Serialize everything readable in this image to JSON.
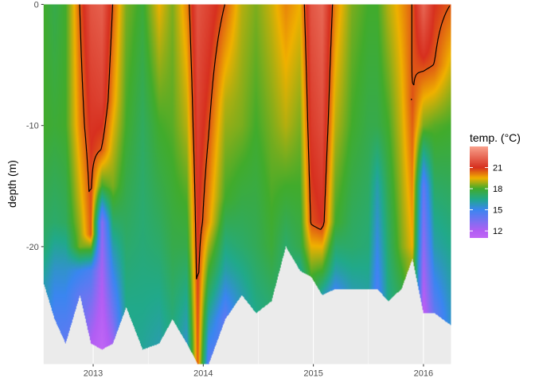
{
  "chart_data": {
    "type": "heatmap",
    "title": "",
    "xlabel": "",
    "ylabel": "depth (m)",
    "x_range": [
      2012.55,
      2016.25
    ],
    "y_range": [
      -29.7,
      0
    ],
    "x_ticks": [
      {
        "value": 2013,
        "label": "2013"
      },
      {
        "value": 2014,
        "label": "2014"
      },
      {
        "value": 2015,
        "label": "2015"
      },
      {
        "value": 2016,
        "label": "2016"
      }
    ],
    "y_ticks": [
      {
        "value": 0,
        "label": "0"
      },
      {
        "value": -10,
        "label": "-10"
      },
      {
        "value": -20,
        "label": "-20"
      }
    ],
    "grid": true,
    "legend": {
      "title": "temp. (°C)",
      "position": "right",
      "scale": [
        {
          "value": 24,
          "color": "#f9a18c"
        },
        {
          "value": 21,
          "color": "#d7301f"
        },
        {
          "value": 19.5,
          "color": "#f0b000"
        },
        {
          "value": 18,
          "color": "#41ab2c"
        },
        {
          "value": 16.5,
          "color": "#21a98a"
        },
        {
          "value": 15,
          "color": "#3a86f0"
        },
        {
          "value": 12,
          "color": "#b25ef3"
        },
        {
          "value": 11,
          "color": "#c066f5"
        }
      ],
      "breaks": [
        {
          "value": 21,
          "label": "21"
        },
        {
          "value": 18,
          "label": "18"
        },
        {
          "value": 15,
          "label": "15"
        },
        {
          "value": 12,
          "label": "12"
        }
      ]
    },
    "series": [
      {
        "name": "",
        "x": 2012.55,
        "bottom": -23,
        "profile": [
          [
            0,
            18
          ],
          [
            -10,
            18
          ],
          [
            -20,
            17
          ],
          [
            -23,
            16
          ]
        ]
      },
      {
        "name": "",
        "x": 2012.65,
        "bottom": -26,
        "profile": [
          [
            0,
            17.5
          ],
          [
            -10,
            17.8
          ],
          [
            -18,
            17
          ],
          [
            -22,
            15.5
          ],
          [
            -26,
            14.5
          ]
        ]
      },
      {
        "name": "",
        "x": 2012.75,
        "bottom": -28,
        "profile": [
          [
            0,
            18
          ],
          [
            -10,
            18
          ],
          [
            -18,
            17.2
          ],
          [
            -22,
            15.5
          ],
          [
            -28,
            14
          ]
        ]
      },
      {
        "name": "",
        "x": 2012.88,
        "bottom": -24,
        "profile": [
          [
            0,
            20.5
          ],
          [
            -10,
            20
          ],
          [
            -16,
            19.2
          ],
          [
            -20,
            18.5
          ],
          [
            -22,
            15
          ],
          [
            -24,
            14
          ]
        ]
      },
      {
        "name": "",
        "x": 2012.98,
        "bottom": -28,
        "profile": [
          [
            0,
            22
          ],
          [
            -8,
            21.3
          ],
          [
            -14,
            20.8
          ],
          [
            -19,
            20.5
          ],
          [
            -22,
            14.5
          ],
          [
            -28,
            12
          ]
        ]
      },
      {
        "name": "",
        "x": 2013.08,
        "bottom": -28.5,
        "profile": [
          [
            0,
            22.3
          ],
          [
            -8,
            21.5
          ],
          [
            -12,
            20.5
          ],
          [
            -15,
            18
          ],
          [
            -18,
            13
          ],
          [
            -28.5,
            11
          ]
        ]
      },
      {
        "name": "",
        "x": 2013.18,
        "bottom": -28,
        "profile": [
          [
            0,
            20.5
          ],
          [
            -8,
            19.8
          ],
          [
            -15,
            18.5
          ],
          [
            -20,
            16
          ],
          [
            -28,
            12.5
          ]
        ]
      },
      {
        "name": "",
        "x": 2013.3,
        "bottom": -25,
        "profile": [
          [
            0,
            18.5
          ],
          [
            -10,
            18
          ],
          [
            -18,
            17.2
          ],
          [
            -25,
            16.5
          ]
        ]
      },
      {
        "name": "",
        "x": 2013.45,
        "bottom": -28.5,
        "profile": [
          [
            0,
            17.8
          ],
          [
            -10,
            17.2
          ],
          [
            -20,
            16.8
          ],
          [
            -28.5,
            16.3
          ]
        ]
      },
      {
        "name": "",
        "x": 2013.6,
        "bottom": -28,
        "profile": [
          [
            0,
            19.5
          ],
          [
            -10,
            18
          ],
          [
            -20,
            17
          ],
          [
            -28,
            16
          ]
        ]
      },
      {
        "name": "",
        "x": 2013.72,
        "bottom": -26,
        "profile": [
          [
            0,
            18.5
          ],
          [
            -10,
            18.2
          ],
          [
            -20,
            17.5
          ],
          [
            -26,
            16.8
          ]
        ]
      },
      {
        "name": "",
        "x": 2013.85,
        "bottom": -28,
        "profile": [
          [
            0,
            20
          ],
          [
            -10,
            19
          ],
          [
            -20,
            17.5
          ],
          [
            -28,
            15.5
          ]
        ]
      },
      {
        "name": "",
        "x": 2013.95,
        "bottom": -29.7,
        "profile": [
          [
            0,
            22
          ],
          [
            -10,
            21.5
          ],
          [
            -20,
            21
          ],
          [
            -29.7,
            20.5
          ]
        ]
      },
      {
        "name": "",
        "x": 2014.05,
        "bottom": -29.7,
        "profile": [
          [
            0,
            21.5
          ],
          [
            -8,
            20.8
          ],
          [
            -18,
            19.8
          ],
          [
            -24,
            17
          ],
          [
            -29.7,
            14
          ]
        ]
      },
      {
        "name": "",
        "x": 2014.2,
        "bottom": -26,
        "profile": [
          [
            0,
            20.5
          ],
          [
            -8,
            19
          ],
          [
            -16,
            18
          ],
          [
            -22,
            16
          ],
          [
            -26,
            14
          ]
        ]
      },
      {
        "name": "",
        "x": 2014.35,
        "bottom": -24,
        "profile": [
          [
            0,
            19
          ],
          [
            -10,
            18.5
          ],
          [
            -20,
            17
          ],
          [
            -24,
            16
          ]
        ]
      },
      {
        "name": "",
        "x": 2014.48,
        "bottom": -25.5,
        "profile": [
          [
            0,
            18.5
          ],
          [
            -10,
            18
          ],
          [
            -20,
            17.3
          ],
          [
            -25.5,
            16.5
          ]
        ]
      },
      {
        "name": "",
        "x": 2014.62,
        "bottom": -24.5,
        "profile": [
          [
            0,
            19.2
          ],
          [
            -10,
            18.5
          ],
          [
            -20,
            17.8
          ],
          [
            -24.5,
            17
          ]
        ]
      },
      {
        "name": "",
        "x": 2014.75,
        "bottom": -20,
        "profile": [
          [
            0,
            20
          ],
          [
            -10,
            19
          ],
          [
            -20,
            17
          ]
        ]
      },
      {
        "name": "",
        "x": 2014.88,
        "bottom": -22,
        "profile": [
          [
            0,
            19.5
          ],
          [
            -10,
            18.5
          ],
          [
            -20,
            17.5
          ],
          [
            -22,
            16.5
          ]
        ]
      },
      {
        "name": "",
        "x": 2014.98,
        "bottom": -22.5,
        "profile": [
          [
            0,
            22
          ],
          [
            -10,
            21.3
          ],
          [
            -18,
            20.6
          ],
          [
            -22.5,
            18
          ]
        ]
      },
      {
        "name": "",
        "x": 2015.08,
        "bottom": -24,
        "profile": [
          [
            0,
            22.5
          ],
          [
            -10,
            21.8
          ],
          [
            -18,
            21
          ],
          [
            -22,
            18
          ],
          [
            -24,
            16
          ]
        ]
      },
      {
        "name": "",
        "x": 2015.2,
        "bottom": -23.5,
        "profile": [
          [
            0,
            20
          ],
          [
            -10,
            19
          ],
          [
            -18,
            18
          ],
          [
            -22,
            16
          ],
          [
            -23.5,
            15
          ]
        ]
      },
      {
        "name": "",
        "x": 2015.35,
        "bottom": -23.5,
        "profile": [
          [
            0,
            18.5
          ],
          [
            -10,
            18
          ],
          [
            -20,
            17
          ],
          [
            -23.5,
            16
          ]
        ]
      },
      {
        "name": "",
        "x": 2015.5,
        "bottom": -23.5,
        "profile": [
          [
            0,
            18
          ],
          [
            -10,
            17.5
          ],
          [
            -20,
            16.8
          ],
          [
            -23.5,
            16.2
          ]
        ]
      },
      {
        "name": "",
        "x": 2015.58,
        "bottom": -23.5,
        "profile": [
          [
            0,
            18
          ],
          [
            -10,
            17.5
          ],
          [
            -15,
            16
          ],
          [
            -23.5,
            14.5
          ]
        ]
      },
      {
        "name": "",
        "x": 2015.68,
        "bottom": -24.5,
        "profile": [
          [
            0,
            19
          ],
          [
            -10,
            18
          ],
          [
            -20,
            17
          ],
          [
            -24.5,
            16.5
          ]
        ]
      },
      {
        "name": "",
        "x": 2015.8,
        "bottom": -23.5,
        "profile": [
          [
            0,
            19.8
          ],
          [
            -10,
            19.2
          ],
          [
            -20,
            18.5
          ],
          [
            -23.5,
            17.5
          ]
        ]
      },
      {
        "name": "",
        "x": 2015.9,
        "bottom": -21,
        "profile": [
          [
            0,
            20.5
          ],
          [
            -8,
            20.6
          ],
          [
            -12,
            20.3
          ],
          [
            -20,
            19.5
          ],
          [
            -21,
            19
          ]
        ]
      },
      {
        "name": "",
        "x": 2016.0,
        "bottom": -25.5,
        "profile": [
          [
            0,
            22.5
          ],
          [
            -4,
            21.2
          ],
          [
            -10,
            18.5
          ],
          [
            -15,
            14
          ],
          [
            -25.5,
            11.5
          ]
        ]
      },
      {
        "name": "",
        "x": 2016.1,
        "bottom": -25.5,
        "profile": [
          [
            0,
            21
          ],
          [
            -5,
            20.5
          ],
          [
            -10,
            18.2
          ],
          [
            -20,
            16
          ],
          [
            -25.5,
            14
          ]
        ]
      },
      {
        "name": "",
        "x": 2016.25,
        "bottom": -26.5,
        "profile": [
          [
            0,
            20.5
          ],
          [
            -10,
            18
          ],
          [
            -20,
            16.5
          ],
          [
            -26.5,
            15.5
          ]
        ]
      }
    ],
    "contour_level": 20.5
  }
}
